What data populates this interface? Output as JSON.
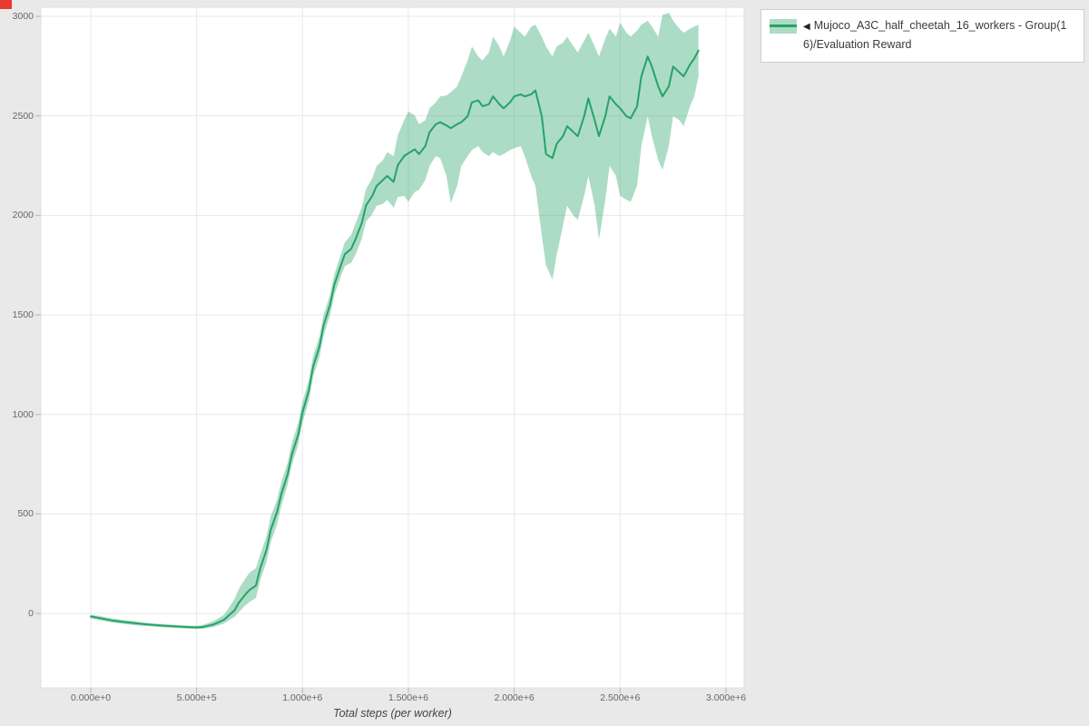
{
  "page": {
    "background": "#e9e9e9"
  },
  "corner_mark": {
    "color": "#e83a30"
  },
  "legend": {
    "toggle_glyph": "◀"
  },
  "chart_data": {
    "type": "line",
    "title": "",
    "xlabel": "Total steps (per worker)",
    "ylabel": "",
    "legend_position": "top-right-outside",
    "grid": true,
    "xlim": [
      0,
      3000000
    ],
    "ylim": [
      -374,
      3046
    ],
    "x_scale": 1000000,
    "x_ticks": [
      {
        "value": 0,
        "label": "0.000e+0"
      },
      {
        "value": 500000,
        "label": "5.000e+5"
      },
      {
        "value": 1000000,
        "label": "1.000e+6"
      },
      {
        "value": 1500000,
        "label": "1.500e+6"
      },
      {
        "value": 2000000,
        "label": "2.000e+6"
      },
      {
        "value": 2500000,
        "label": "2.500e+6"
      },
      {
        "value": 3000000,
        "label": "3.000e+6"
      }
    ],
    "y_ticks": [
      {
        "value": 0,
        "label": "0"
      },
      {
        "value": 500,
        "label": "500"
      },
      {
        "value": 1000,
        "label": "1000"
      },
      {
        "value": 1500,
        "label": "1500"
      },
      {
        "value": 2000,
        "label": "2000"
      },
      {
        "value": 2500,
        "label": "2500"
      },
      {
        "value": 3000,
        "label": "3000"
      }
    ],
    "series": [
      {
        "name": "Mujoco_A3C_half_cheetah_16_workers - Group(16)/Evaluation Reward",
        "color": "#26a269",
        "band_color": "rgba(38,162,105,0.38)",
        "points_format": [
          "x_in_millions",
          "mean",
          "band_low",
          "band_high"
        ],
        "points": [
          [
            0.0,
            -15,
            -25,
            -5
          ],
          [
            0.05,
            -25,
            -35,
            -15
          ],
          [
            0.1,
            -35,
            -45,
            -25
          ],
          [
            0.15,
            -42,
            -52,
            -32
          ],
          [
            0.2,
            -48,
            -58,
            -38
          ],
          [
            0.25,
            -54,
            -62,
            -45
          ],
          [
            0.3,
            -58,
            -66,
            -50
          ],
          [
            0.35,
            -62,
            -70,
            -54
          ],
          [
            0.4,
            -65,
            -73,
            -57
          ],
          [
            0.45,
            -68,
            -76,
            -60
          ],
          [
            0.5,
            -70,
            -78,
            -62
          ],
          [
            0.53,
            -68,
            -77,
            -57
          ],
          [
            0.55,
            -63,
            -73,
            -50
          ],
          [
            0.58,
            -55,
            -68,
            -38
          ],
          [
            0.6,
            -46,
            -61,
            -26
          ],
          [
            0.63,
            -31,
            -50,
            -6
          ],
          [
            0.65,
            -12,
            -36,
            25
          ],
          [
            0.68,
            18,
            -16,
            75
          ],
          [
            0.7,
            55,
            8,
            125
          ],
          [
            0.73,
            95,
            40,
            175
          ],
          [
            0.75,
            118,
            58,
            205
          ],
          [
            0.78,
            140,
            78,
            228
          ],
          [
            0.8,
            225,
            165,
            295
          ],
          [
            0.83,
            320,
            258,
            388
          ],
          [
            0.85,
            420,
            358,
            488
          ],
          [
            0.88,
            510,
            448,
            572
          ],
          [
            0.9,
            600,
            540,
            660
          ],
          [
            0.93,
            700,
            648,
            758
          ],
          [
            0.95,
            800,
            748,
            858
          ],
          [
            0.98,
            900,
            848,
            958
          ],
          [
            1.0,
            1010,
            958,
            1062
          ],
          [
            1.03,
            1120,
            1068,
            1172
          ],
          [
            1.05,
            1240,
            1188,
            1292
          ],
          [
            1.08,
            1340,
            1288,
            1392
          ],
          [
            1.1,
            1450,
            1398,
            1502
          ],
          [
            1.13,
            1550,
            1498,
            1602
          ],
          [
            1.15,
            1650,
            1598,
            1702
          ],
          [
            1.18,
            1745,
            1690,
            1800
          ],
          [
            1.2,
            1805,
            1745,
            1865
          ],
          [
            1.23,
            1832,
            1762,
            1902
          ],
          [
            1.25,
            1880,
            1802,
            1958
          ],
          [
            1.28,
            1962,
            1882,
            2042
          ],
          [
            1.3,
            2050,
            1968,
            2132
          ],
          [
            1.33,
            2098,
            2008,
            2188
          ],
          [
            1.35,
            2148,
            2048,
            2248
          ],
          [
            1.38,
            2178,
            2058,
            2278
          ],
          [
            1.4,
            2198,
            2078,
            2318
          ],
          [
            1.43,
            2168,
            2038,
            2298
          ],
          [
            1.45,
            2252,
            2092,
            2402
          ],
          [
            1.48,
            2298,
            2098,
            2478
          ],
          [
            1.5,
            2312,
            2068,
            2522
          ],
          [
            1.53,
            2332,
            2118,
            2502
          ],
          [
            1.55,
            2308,
            2128,
            2458
          ],
          [
            1.58,
            2348,
            2178,
            2478
          ],
          [
            1.6,
            2418,
            2248,
            2538
          ],
          [
            1.63,
            2458,
            2298,
            2568
          ],
          [
            1.65,
            2468,
            2288,
            2598
          ],
          [
            1.68,
            2452,
            2198,
            2602
          ],
          [
            1.7,
            2438,
            2062,
            2618
          ],
          [
            1.73,
            2458,
            2148,
            2648
          ],
          [
            1.75,
            2468,
            2248,
            2698
          ],
          [
            1.78,
            2498,
            2298,
            2778
          ],
          [
            1.8,
            2568,
            2328,
            2848
          ],
          [
            1.83,
            2578,
            2348,
            2798
          ],
          [
            1.85,
            2548,
            2318,
            2778
          ],
          [
            1.88,
            2558,
            2298,
            2818
          ],
          [
            1.9,
            2598,
            2318,
            2898
          ],
          [
            1.93,
            2558,
            2298,
            2848
          ],
          [
            1.95,
            2538,
            2308,
            2798
          ],
          [
            1.98,
            2568,
            2328,
            2878
          ],
          [
            2.0,
            2598,
            2338,
            2948
          ],
          [
            2.03,
            2608,
            2348,
            2918
          ],
          [
            2.05,
            2598,
            2298,
            2898
          ],
          [
            2.08,
            2608,
            2198,
            2948
          ],
          [
            2.1,
            2628,
            2148,
            2958
          ],
          [
            2.13,
            2498,
            1898,
            2898
          ],
          [
            2.15,
            2308,
            1748,
            2848
          ],
          [
            2.18,
            2288,
            1678,
            2798
          ],
          [
            2.2,
            2358,
            1798,
            2848
          ],
          [
            2.23,
            2398,
            1948,
            2868
          ],
          [
            2.25,
            2448,
            2048,
            2898
          ],
          [
            2.28,
            2418,
            1998,
            2848
          ],
          [
            2.3,
            2398,
            1978,
            2818
          ],
          [
            2.33,
            2498,
            2098,
            2878
          ],
          [
            2.35,
            2588,
            2198,
            2918
          ],
          [
            2.38,
            2478,
            2048,
            2848
          ],
          [
            2.4,
            2398,
            1878,
            2798
          ],
          [
            2.43,
            2498,
            2078,
            2888
          ],
          [
            2.45,
            2598,
            2248,
            2938
          ],
          [
            2.48,
            2558,
            2198,
            2898
          ],
          [
            2.5,
            2538,
            2098,
            2968
          ],
          [
            2.53,
            2498,
            2078,
            2918
          ],
          [
            2.55,
            2488,
            2068,
            2898
          ],
          [
            2.58,
            2548,
            2148,
            2928
          ],
          [
            2.6,
            2698,
            2348,
            2958
          ],
          [
            2.63,
            2798,
            2498,
            2978
          ],
          [
            2.65,
            2748,
            2398,
            2948
          ],
          [
            2.68,
            2648,
            2278,
            2898
          ],
          [
            2.7,
            2598,
            2228,
            3008
          ],
          [
            2.73,
            2648,
            2348,
            3018
          ],
          [
            2.75,
            2748,
            2498,
            2978
          ],
          [
            2.78,
            2718,
            2478,
            2938
          ],
          [
            2.8,
            2698,
            2448,
            2918
          ],
          [
            2.83,
            2758,
            2548,
            2938
          ],
          [
            2.85,
            2788,
            2598,
            2948
          ],
          [
            2.87,
            2828,
            2698,
            2958
          ]
        ]
      }
    ]
  }
}
